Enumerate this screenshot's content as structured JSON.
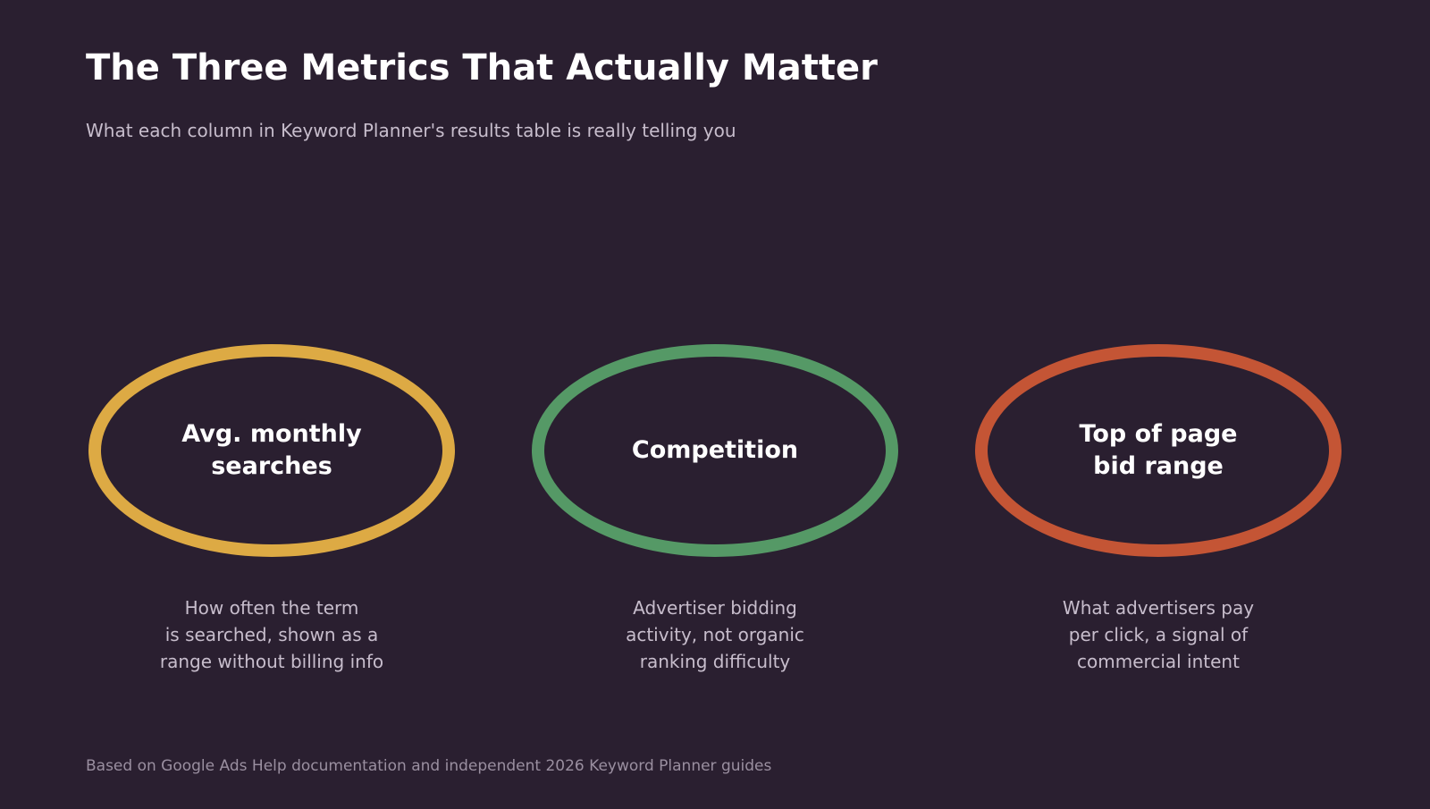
{
  "header": {
    "title": "The Three Metrics That Actually Matter",
    "subtitle": "What each column in Keyword Planner's results table is really telling you"
  },
  "metrics": [
    {
      "label": "Avg. monthly\nsearches",
      "description": "How often the term\nis searched, shown as a\nrange without billing info",
      "color": "#ddaa44"
    },
    {
      "label": "Competition",
      "description": "Advertiser bidding\nactivity, not organic\nranking difficulty",
      "color": "#559966"
    },
    {
      "label": "Top of page\nbid range",
      "description": "What advertisers pay\nper click, a signal of\ncommercial intent",
      "color": "#c45535"
    }
  ],
  "footer": {
    "source": "Based on Google Ads Help documentation and independent 2026 Keyword Planner guides"
  }
}
